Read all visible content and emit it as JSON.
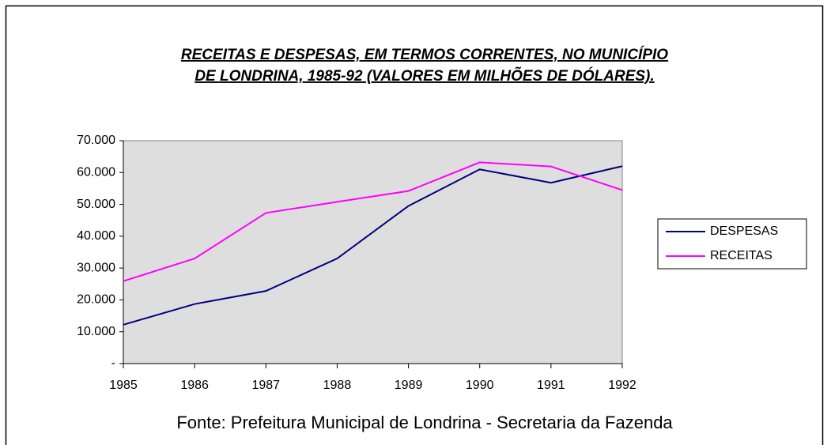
{
  "chart_data": {
    "type": "line",
    "title": [
      "RECEITAS E DESPESAS, EM TERMOS CORRENTES, NO MUNICÍPIO",
      "DE LONDRINA, 1985-92 (VALORES EM MILHÕES DE DÓLARES)."
    ],
    "source": "Fonte: Prefeitura Municipal de Londrina - Secretaria da Fazenda",
    "categories": [
      "1985",
      "1986",
      "1987",
      "1988",
      "1989",
      "1990",
      "1991",
      "1992"
    ],
    "series": [
      {
        "name": "DESPESAS",
        "color": "#000080",
        "values": [
          12200,
          18700,
          22800,
          33000,
          49500,
          61000,
          56800,
          62000
        ]
      },
      {
        "name": "RECEITAS",
        "color": "#ff00ff",
        "values": [
          25900,
          33000,
          47300,
          50800,
          54200,
          63200,
          61900,
          54500
        ]
      }
    ],
    "ylim": [
      0,
      70000
    ],
    "yticks": [
      {
        "value": 0,
        "label": "-"
      },
      {
        "value": 10000,
        "label": "10.000"
      },
      {
        "value": 20000,
        "label": "20.000"
      },
      {
        "value": 30000,
        "label": "30.000"
      },
      {
        "value": 40000,
        "label": "40.000"
      },
      {
        "value": 50000,
        "label": "50.000"
      },
      {
        "value": 60000,
        "label": "60.000"
      },
      {
        "value": 70000,
        "label": "70.000"
      }
    ],
    "grid": false,
    "legend": "right",
    "plot_background": "#dedede"
  }
}
